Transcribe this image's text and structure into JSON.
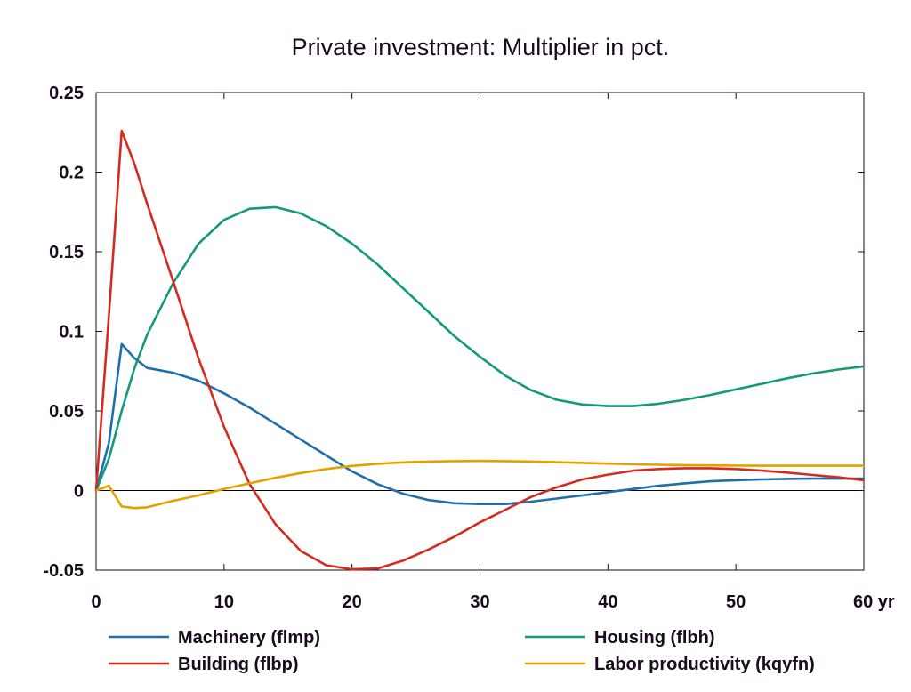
{
  "chart_data": {
    "type": "line",
    "title": "Private investment: Multiplier in pct.",
    "xlabel": "",
    "ylabel": "",
    "xlim": [
      0,
      60
    ],
    "ylim": [
      -0.05,
      0.25
    ],
    "x_ticks": [
      0,
      10,
      20,
      30,
      40,
      50,
      60
    ],
    "x_tick_labels": [
      "0",
      "10",
      "20",
      "30",
      "40",
      "50",
      "60 yr"
    ],
    "y_ticks": [
      -0.05,
      0,
      0.05,
      0.1,
      0.15,
      0.2,
      0.25
    ],
    "y_tick_labels": [
      "-0.05",
      "0",
      "0.05",
      "0.1",
      "0.15",
      "0.2",
      "0.25"
    ],
    "grid": false,
    "zero_line": true,
    "legend_position": "bottom",
    "series": [
      {
        "name": "Machinery (flmp)",
        "color": "#1f6fad",
        "x": [
          0,
          1,
          2,
          3,
          4,
          6,
          8,
          10,
          12,
          14,
          16,
          18,
          20,
          22,
          24,
          26,
          28,
          30,
          32,
          34,
          36,
          38,
          40,
          42,
          44,
          46,
          48,
          50,
          52,
          54,
          56,
          58,
          60
        ],
        "y": [
          0,
          0.03,
          0.092,
          0.083,
          0.077,
          0.074,
          0.069,
          0.061,
          0.052,
          0.042,
          0.032,
          0.022,
          0.012,
          0.004,
          -0.002,
          -0.006,
          -0.008,
          -0.0085,
          -0.0085,
          -0.007,
          -0.005,
          -0.003,
          -0.001,
          0.001,
          0.003,
          0.0045,
          0.0058,
          0.0065,
          0.007,
          0.0073,
          0.0075,
          0.0075,
          0.0075
        ]
      },
      {
        "name": "Housing (flbh)",
        "color": "#14997a",
        "x": [
          0,
          1,
          2,
          3,
          4,
          6,
          8,
          10,
          12,
          14,
          16,
          18,
          20,
          22,
          24,
          26,
          28,
          30,
          32,
          34,
          36,
          38,
          40,
          42,
          44,
          46,
          48,
          50,
          52,
          54,
          56,
          58,
          60
        ],
        "y": [
          0,
          0.02,
          0.05,
          0.077,
          0.098,
          0.13,
          0.155,
          0.17,
          0.177,
          0.178,
          0.174,
          0.166,
          0.155,
          0.142,
          0.127,
          0.112,
          0.097,
          0.084,
          0.072,
          0.063,
          0.057,
          0.054,
          0.053,
          0.053,
          0.0545,
          0.057,
          0.06,
          0.0635,
          0.067,
          0.0705,
          0.0735,
          0.076,
          0.078
        ]
      },
      {
        "name": "Building (flbp)",
        "color": "#d52b1e",
        "x": [
          0,
          1,
          2,
          3,
          4,
          6,
          8,
          10,
          12,
          14,
          16,
          18,
          20,
          22,
          24,
          26,
          28,
          30,
          32,
          34,
          36,
          38,
          40,
          42,
          44,
          46,
          48,
          50,
          52,
          54,
          56,
          58,
          60
        ],
        "y": [
          0,
          0.11,
          0.226,
          0.205,
          0.18,
          0.132,
          0.083,
          0.04,
          0.004,
          -0.021,
          -0.038,
          -0.047,
          -0.0495,
          -0.049,
          -0.044,
          -0.037,
          -0.029,
          -0.02,
          -0.012,
          -0.004,
          0.002,
          0.007,
          0.01,
          0.0125,
          0.0135,
          0.014,
          0.014,
          0.0135,
          0.0125,
          0.0113,
          0.0098,
          0.0083,
          0.0065
        ]
      },
      {
        "name": "Labor productivity (kqyfn)",
        "color": "#e5a000",
        "x": [
          0,
          1,
          2,
          3,
          4,
          6,
          8,
          10,
          12,
          14,
          16,
          18,
          20,
          22,
          24,
          26,
          28,
          30,
          32,
          34,
          36,
          38,
          40,
          42,
          44,
          46,
          48,
          50,
          52,
          54,
          56,
          58,
          60
        ],
        "y": [
          0,
          0.003,
          -0.01,
          -0.011,
          -0.0105,
          -0.0065,
          -0.003,
          0.001,
          0.0045,
          0.008,
          0.011,
          0.0135,
          0.0155,
          0.0168,
          0.0177,
          0.0182,
          0.0185,
          0.0186,
          0.0185,
          0.0182,
          0.0178,
          0.0174,
          0.0169,
          0.0165,
          0.0162,
          0.016,
          0.0158,
          0.0157,
          0.0156,
          0.0156,
          0.0156,
          0.0156,
          0.0156
        ]
      }
    ]
  }
}
